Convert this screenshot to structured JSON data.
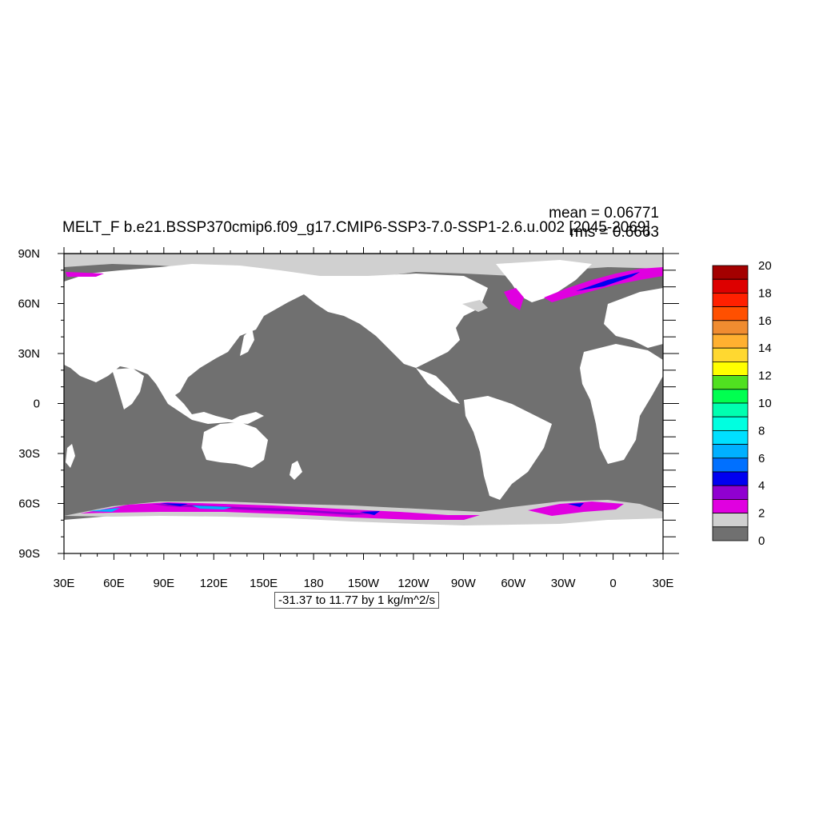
{
  "title": "MELT_F b.e21.BSSP370cmip6.f09_g17.CMIP6-SSP3-7.0-SSP1-2.6.u.002 [2045-2069]",
  "stats": {
    "mean": "mean = 0.06771",
    "rms": "rms = 0.6663"
  },
  "contour_info": "-31.37 to 11.77 by 1 kg/m^2/s",
  "x_ticks": [
    "30E",
    "60E",
    "90E",
    "120E",
    "150E",
    "180",
    "150W",
    "120W",
    "90W",
    "60W",
    "30W",
    "0",
    "30E"
  ],
  "y_ticks": [
    "90N",
    "60N",
    "30N",
    "0",
    "30S",
    "60S",
    "90S"
  ],
  "colorbar": {
    "labels": [
      "20",
      "18",
      "16",
      "14",
      "12",
      "10",
      "8",
      "6",
      "4",
      "2",
      "0"
    ],
    "colors": [
      "#a40000",
      "#dd0000",
      "#ff2000",
      "#ff5000",
      "#f08c30",
      "#ffb030",
      "#ffd830",
      "#ffff00",
      "#50e020",
      "#00ff50",
      "#00ffb0",
      "#00ffe0",
      "#00e0ff",
      "#00b0ff",
      "#0070ff",
      "#0000f0",
      "#9000d0",
      "#e000e0",
      "#d0d0d0",
      "#707070"
    ]
  },
  "map_colors": {
    "ocean": "#707070",
    "land": "#ffffff",
    "ice_low": "#d0d0d0",
    "ice_mid": "#e000e0",
    "ice_high": "#9000d0",
    "ice_peak": "#0000f0",
    "ice_cyan": "#00b0ff"
  }
}
